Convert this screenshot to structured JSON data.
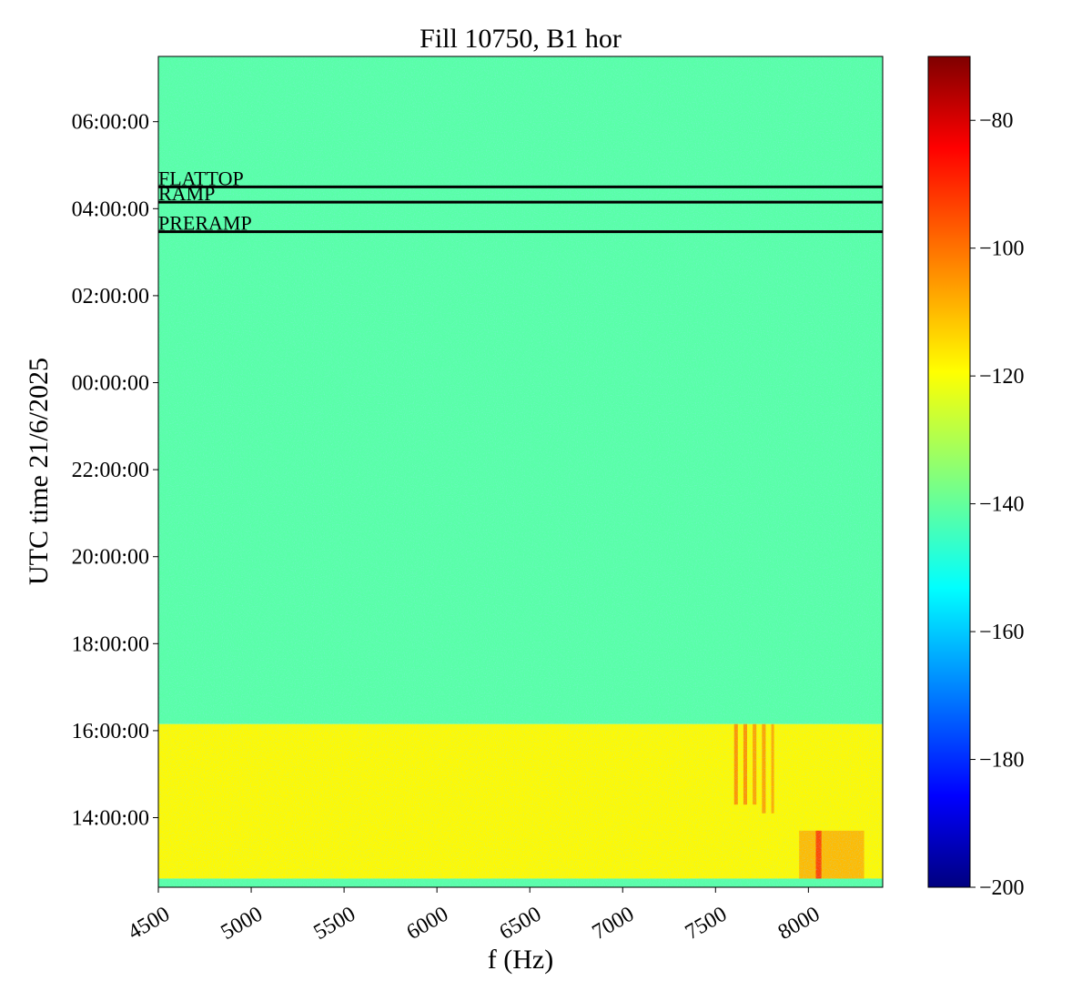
{
  "chart_data": {
    "type": "heatmap",
    "title": "Fill 10750, B1 hor",
    "xlabel": "f (Hz)",
    "ylabel": "UTC time 21/6/2025",
    "xlim": [
      4500,
      8400
    ],
    "xticks": [
      4500,
      5000,
      5500,
      6000,
      6500,
      7000,
      7500,
      8000
    ],
    "ylim": [
      -11.6,
      7.5
    ],
    "yticks": [
      {
        "value": -10,
        "label": "14:00:00"
      },
      {
        "value": -8,
        "label": "16:00:00"
      },
      {
        "value": -6,
        "label": "18:00:00"
      },
      {
        "value": -4,
        "label": "20:00:00"
      },
      {
        "value": -2,
        "label": "22:00:00"
      },
      {
        "value": 0,
        "label": "00:00:00"
      },
      {
        "value": 2,
        "label": "02:00:00"
      },
      {
        "value": 4,
        "label": "04:00:00"
      },
      {
        "value": 6,
        "label": "06:00:00"
      }
    ],
    "clim": [
      -200,
      -70
    ],
    "cticks": [
      {
        "value": -80,
        "label": "−80"
      },
      {
        "value": -100,
        "label": "−100"
      },
      {
        "value": -120,
        "label": "−120"
      },
      {
        "value": -140,
        "label": "−140"
      },
      {
        "value": -160,
        "label": "−160"
      },
      {
        "value": -180,
        "label": "−180"
      },
      {
        "value": -200,
        "label": "−200"
      }
    ],
    "colormap": "jet",
    "regions": [
      {
        "x": [
          4500,
          8400
        ],
        "y": [
          -7.85,
          7.5
        ],
        "level": -140
      },
      {
        "x": [
          4500,
          8400
        ],
        "y": [
          -11.4,
          -7.85
        ],
        "level": -118
      },
      {
        "x": [
          4500,
          8400
        ],
        "y": [
          -11.6,
          -11.4
        ],
        "level": -140
      },
      {
        "x": [
          7600,
          7620
        ],
        "y": [
          -9.7,
          -7.85
        ],
        "level": -105
      },
      {
        "x": [
          7650,
          7670
        ],
        "y": [
          -9.7,
          -7.85
        ],
        "level": -105
      },
      {
        "x": [
          7700,
          7720
        ],
        "y": [
          -9.7,
          -7.85
        ],
        "level": -107
      },
      {
        "x": [
          7750,
          7770
        ],
        "y": [
          -9.9,
          -7.85
        ],
        "level": -107
      },
      {
        "x": [
          7800,
          7815
        ],
        "y": [
          -9.9,
          -7.85
        ],
        "level": -108
      },
      {
        "x": [
          7950,
          8300
        ],
        "y": [
          -11.4,
          -10.3
        ],
        "level": -110
      },
      {
        "x": [
          8040,
          8070
        ],
        "y": [
          -11.4,
          -10.3
        ],
        "level": -95
      }
    ],
    "annotations": [
      {
        "text": "FLATTOP",
        "y": 4.5
      },
      {
        "text": "RAMP",
        "y": 4.15
      },
      {
        "text": "PRERAMP",
        "y": 3.47
      }
    ]
  }
}
